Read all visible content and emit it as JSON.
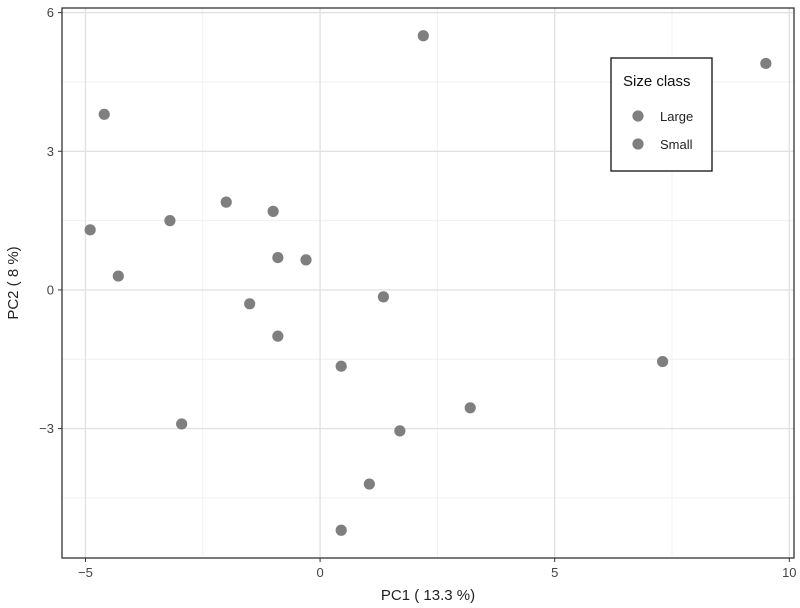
{
  "chart_data": {
    "type": "scatter",
    "title": "",
    "xlabel": "PC1 ( 13.3 %)",
    "ylabel": "PC2 ( 8 %)",
    "xlim": [
      -5.5,
      10.1
    ],
    "ylim": [
      -5.8,
      6.1
    ],
    "xticks": [
      -5,
      0,
      5,
      10
    ],
    "xtick_labels": [
      "−5",
      "0",
      "5",
      "10"
    ],
    "yticks": [
      -3,
      0,
      3,
      6
    ],
    "ytick_labels": [
      "−3",
      "0",
      "3",
      "6"
    ],
    "xgrid_minor": [
      -2.5,
      2.5,
      7.5
    ],
    "ygrid_minor": [
      -4.5,
      -1.5,
      1.5,
      4.5
    ],
    "grid": true,
    "point_color": "#7f7f7f",
    "legend": {
      "title": "Size class",
      "position": "top-right",
      "entries": [
        {
          "label": "Large",
          "color": "#7f7f7f"
        },
        {
          "label": "Small",
          "color": "#7f7f7f"
        }
      ]
    },
    "series": [
      {
        "name": "points",
        "x": [
          2.2,
          9.5,
          -4.6,
          -2.0,
          -1.0,
          -3.2,
          -4.9,
          -0.9,
          -0.3,
          -4.3,
          1.35,
          -1.5,
          -0.9,
          0.45,
          7.3,
          3.2,
          1.7,
          -2.95,
          1.05,
          0.45
        ],
        "y": [
          5.5,
          4.9,
          3.8,
          1.9,
          1.7,
          1.5,
          1.3,
          0.7,
          0.65,
          0.3,
          -0.15,
          -0.3,
          -1.0,
          -1.65,
          -1.55,
          -2.55,
          -3.05,
          -2.9,
          -4.2,
          -5.2
        ]
      }
    ]
  }
}
